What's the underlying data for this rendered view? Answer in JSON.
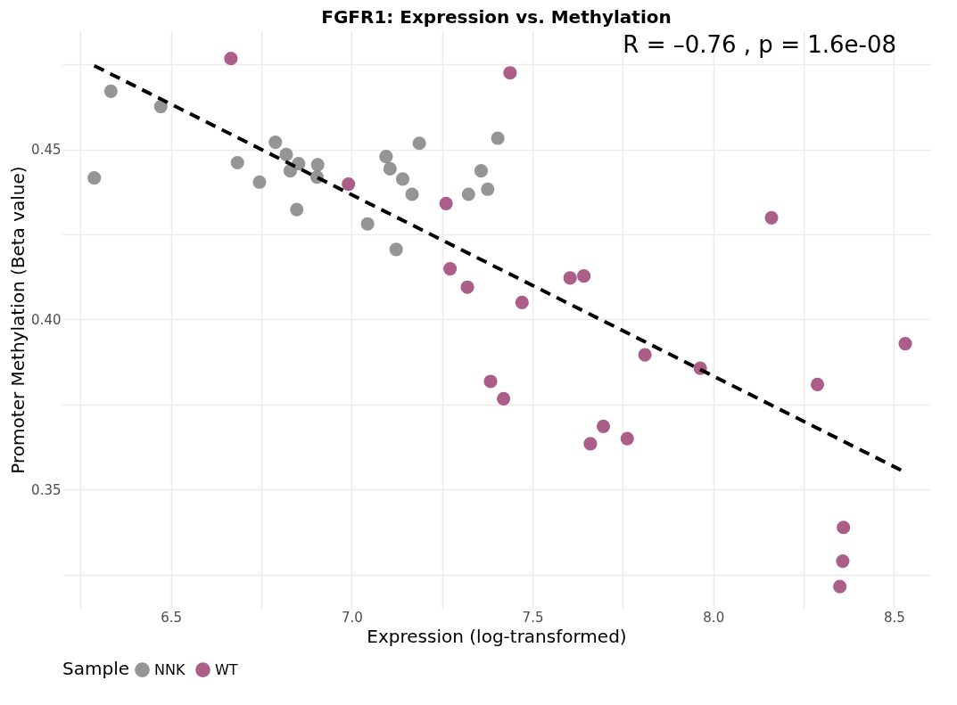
{
  "chart_data": {
    "type": "scatter",
    "title": "FGFR1: Expression vs. Methylation",
    "xlabel": "Expression (log-transformed)",
    "ylabel": "Promoter Methylation (Beta value)",
    "legend_title": "Sample",
    "annotations": [
      "R = –0.76 , p = 1.6e-08"
    ],
    "xlim": [
      6.2,
      8.6
    ],
    "ylim": [
      0.315,
      0.485
    ],
    "xticks": [
      {
        "value": 6.25,
        "label": null
      },
      6.5,
      {
        "value": 6.75,
        "label": null
      },
      {
        "value": 7.0,
        "label": "7.0"
      },
      {
        "value": 7.25,
        "label": null
      },
      7.5,
      {
        "value": 7.75,
        "label": null
      },
      {
        "value": 8.0,
        "label": "8.0"
      },
      {
        "value": 8.25,
        "label": null
      },
      8.5
    ],
    "yticks": [
      {
        "value": 0.325,
        "label": null
      },
      0.35,
      {
        "value": 0.375,
        "label": null
      },
      {
        "value": 0.4,
        "label": "0.40"
      },
      {
        "value": 0.425,
        "label": null
      },
      0.45,
      {
        "value": 0.475,
        "label": null
      }
    ],
    "grid": true,
    "legend": "bottom",
    "marker": "circle",
    "series": [
      {
        "name": "NNK",
        "color": "#8a8a8a",
        "x": [
          6.288,
          6.334,
          6.472,
          6.684,
          6.745,
          6.789,
          6.819,
          6.83,
          6.853,
          6.848,
          6.906,
          6.904,
          7.044,
          7.095,
          7.106,
          7.123,
          7.141,
          7.167,
          7.187,
          7.323,
          7.358,
          7.376,
          7.404
        ],
        "values": [
          0.4416,
          0.4671,
          0.4626,
          0.4461,
          0.4404,
          0.4521,
          0.4485,
          0.4437,
          0.4458,
          0.4323,
          0.4455,
          0.4419,
          0.4281,
          0.4479,
          0.4443,
          0.4206,
          0.4413,
          0.4368,
          0.4518,
          0.4368,
          0.4437,
          0.4383,
          0.4533
        ]
      },
      {
        "name": "WT",
        "color": "#a24c7b",
        "x": [
          6.666,
          6.991,
          7.438,
          7.261,
          7.272,
          7.32,
          7.471,
          7.604,
          7.642,
          7.384,
          7.42,
          7.66,
          7.696,
          7.762,
          7.811,
          7.964,
          8.161,
          8.288,
          8.531,
          8.36,
          8.358,
          8.35
        ],
        "values": [
          0.4767,
          0.4398,
          0.4725,
          0.4341,
          0.4149,
          0.4095,
          0.405,
          0.4122,
          0.4128,
          0.3818,
          0.3767,
          0.3635,
          0.3686,
          0.365,
          0.3896,
          0.3857,
          0.4299,
          0.3809,
          0.3929,
          0.3389,
          0.329,
          0.3215
        ]
      },
      {
        "type": "line",
        "color": "#000000",
        "line_style": "dashed",
        "marker": "none",
        "x": [
          6.288,
          8.531
        ],
        "values": [
          0.4746,
          0.3551
        ]
      }
    ]
  }
}
